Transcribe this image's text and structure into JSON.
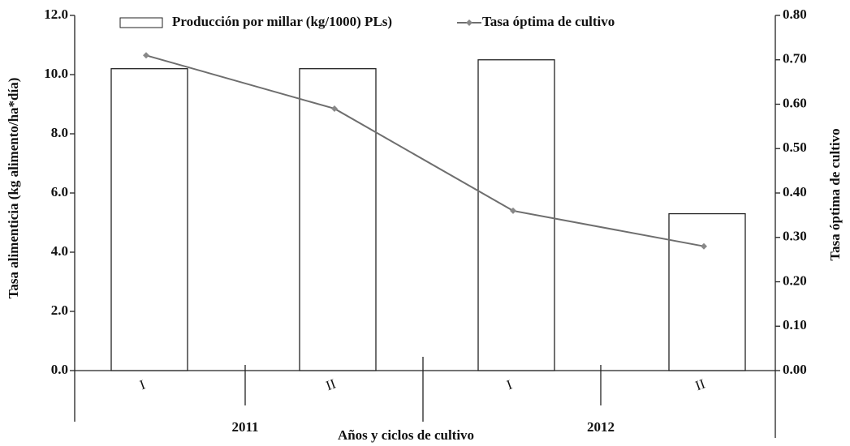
{
  "chart_data": {
    "type": "bar",
    "categories": [
      "I",
      "II",
      "I",
      "II"
    ],
    "groups": [
      "2011",
      "2012"
    ],
    "x_label": "Años y ciclos de cultivo",
    "y_label": "Tasa alimenticia (kg alimento/ha*día)",
    "y2_label": "Tasa óptima de cultivo",
    "series": [
      {
        "name": "Producción por millar (kg/1000) PLs)",
        "type": "bar",
        "color": "#ffffff",
        "values": [
          10.2,
          10.2,
          10.5,
          5.3
        ]
      },
      {
        "name": "Tasa óptima de cultivo",
        "type": "line",
        "axis": "y2",
        "color": "#6e6e6e",
        "values": [
          0.71,
          0.59,
          0.36,
          0.28
        ]
      }
    ],
    "ylim": [
      0,
      12
    ],
    "yticks": [
      {
        "value": 0,
        "label": "0.0"
      },
      {
        "value": 2,
        "label": "2.0"
      },
      {
        "value": 4,
        "label": "4.0"
      },
      {
        "value": 6,
        "label": "6.0"
      },
      {
        "value": 8,
        "label": "8.0"
      },
      {
        "value": 10,
        "label": "10.0"
      },
      {
        "value": 12,
        "label": "12.0"
      }
    ],
    "y2lim": [
      0,
      0.8
    ],
    "y2ticks": [
      {
        "value": 0,
        "label": "0.00"
      },
      {
        "value": 0.1,
        "label": "0.10"
      },
      {
        "value": 0.2,
        "label": "0.20"
      },
      {
        "value": 0.3,
        "label": "0.30"
      },
      {
        "value": 0.4,
        "label": "0.40"
      },
      {
        "value": 0.5,
        "label": "0.50"
      },
      {
        "value": 0.6,
        "label": "0.60"
      },
      {
        "value": 0.7,
        "label": "0.70"
      },
      {
        "value": 0.8,
        "label": "0.80"
      }
    ]
  }
}
